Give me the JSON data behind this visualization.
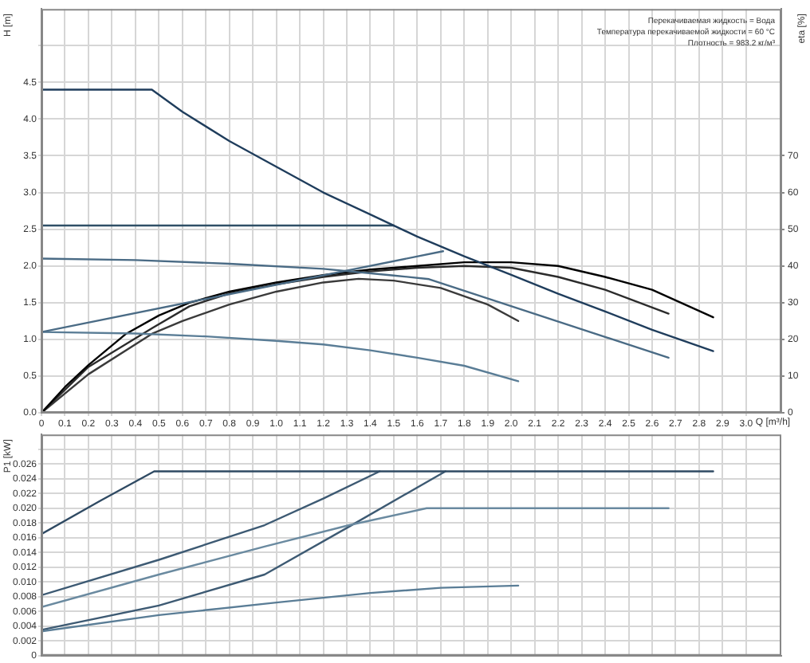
{
  "chart_data": [
    {
      "type": "line",
      "ylabel": "H [m]",
      "y2label": "eta [%]",
      "xlabel": "Q [m³/h]",
      "annotations": [
        "Перекачиваемая жидкость = Вода",
        "Температура перекачиваемой жидкости = 60 °C",
        "Плотность = 983.2 кг/м³"
      ],
      "xlim": [
        0,
        3.15
      ],
      "xticks": [
        0,
        0.1,
        0.2,
        0.3,
        0.4,
        0.5,
        0.6,
        0.7,
        0.8,
        0.9,
        {
          "value": 1,
          "label": "1.0"
        },
        1.1,
        1.2,
        1.3,
        1.4,
        1.5,
        1.6,
        1.7,
        1.8,
        1.9,
        {
          "value": 2,
          "label": "2.0"
        },
        2.1,
        2.2,
        2.3,
        2.4,
        2.5,
        2.6,
        2.7,
        2.8,
        2.9,
        {
          "value": 3,
          "label": "3.0"
        }
      ],
      "ylim": [
        0,
        5.5
      ],
      "yticks": [
        {
          "value": 0,
          "label": "0.0"
        },
        0.5,
        {
          "value": 1,
          "label": "1.0"
        },
        1.5,
        {
          "value": 2,
          "label": "2.0"
        },
        2.5,
        {
          "value": 3,
          "label": "3.0"
        },
        3.5,
        {
          "value": 4,
          "label": "4.0"
        },
        4.5,
        {
          "value": 5,
          "label": null
        }
      ],
      "y2lim": [
        0,
        110
      ],
      "y2ticks": [
        0,
        10,
        20,
        30,
        40,
        50,
        60,
        70
      ],
      "grid": true,
      "series": [
        {
          "color": "#1f3d5c",
          "x": [
            0,
            0.47,
            0.6,
            0.8,
            1.0,
            1.2,
            1.4,
            1.6,
            1.8,
            2.0,
            2.2,
            2.4,
            2.6,
            2.86
          ],
          "values": [
            4.4,
            4.4,
            4.1,
            3.7,
            3.35,
            3.0,
            2.7,
            2.4,
            2.13,
            1.88,
            1.62,
            1.38,
            1.13,
            0.84
          ]
        },
        {
          "color": "#2f4f66",
          "x": [
            0,
            1.5
          ],
          "values": [
            2.55,
            2.55
          ]
        },
        {
          "color": "#4a6b85",
          "x": [
            0,
            0.4,
            0.8,
            1.2,
            1.5,
            1.65,
            2.67
          ],
          "values": [
            2.1,
            2.08,
            2.03,
            1.96,
            1.87,
            1.82,
            0.75
          ]
        },
        {
          "color": "#4a6b85",
          "x": [
            0,
            1.71
          ],
          "values": [
            1.1,
            2.2
          ]
        },
        {
          "color": "#5a7d96",
          "x": [
            0,
            0.4,
            0.7,
            1.0,
            1.2,
            1.4,
            1.6,
            1.8,
            2.03
          ],
          "values": [
            1.1,
            1.08,
            1.04,
            0.98,
            0.93,
            0.85,
            0.75,
            0.64,
            0.43
          ]
        },
        {
          "color": "#000000",
          "axis": "y2",
          "x": [
            0,
            0.1,
            0.2,
            0.36,
            0.5,
            0.63,
            0.8,
            1.0,
            1.2,
            1.4,
            1.6,
            1.8,
            2.0,
            2.2,
            2.4,
            2.6,
            2.86
          ],
          "values": [
            0,
            7,
            13,
            21.5,
            26.5,
            30,
            33,
            35.5,
            37.5,
            39,
            40,
            41,
            41,
            40,
            37,
            33.5,
            26
          ]
        },
        {
          "color": "#2b2b2b",
          "axis": "y2",
          "x": [
            0,
            0.2,
            0.47,
            0.63,
            0.8,
            1.0,
            1.2,
            1.4,
            1.6,
            1.8,
            2.0,
            2.2,
            2.4,
            2.67
          ],
          "values": [
            0,
            12.5,
            23,
            29,
            32.5,
            35,
            37,
            38.5,
            39.5,
            40,
            39.5,
            37,
            33.5,
            27
          ]
        },
        {
          "color": "#3a3a3a",
          "axis": "y2",
          "x": [
            0,
            0.2,
            0.47,
            0.6,
            0.8,
            1.0,
            1.2,
            1.35,
            1.5,
            1.7,
            1.9,
            2.03
          ],
          "values": [
            0,
            10.5,
            21.5,
            25,
            29.5,
            33,
            35.5,
            36.5,
            36,
            34,
            29.5,
            25
          ]
        }
      ]
    },
    {
      "type": "line",
      "ylabel": "P1 [kW]",
      "tick_labels": "y",
      "xlim": [
        0,
        3.15
      ],
      "xticks": [
        0,
        0.1,
        0.2,
        0.3,
        0.4,
        0.5,
        0.6,
        0.7,
        0.8,
        0.9,
        1,
        1.1,
        1.2,
        1.3,
        1.4,
        1.5,
        1.6,
        1.7,
        1.8,
        1.9,
        2,
        2.1,
        2.2,
        2.3,
        2.4,
        2.5,
        2.6,
        2.7,
        2.8,
        2.9,
        3
      ],
      "ylim": [
        0,
        0.03
      ],
      "yticks": [
        0,
        0.002,
        0.004,
        0.006,
        0.008,
        {
          "value": 0.01,
          "label": "0.010"
        },
        0.012,
        0.014,
        0.016,
        0.018,
        {
          "value": 0.02,
          "label": "0.020"
        },
        0.022,
        0.024,
        0.026,
        {
          "value": 0.028,
          "label": null
        }
      ],
      "grid": true,
      "series": [
        {
          "color": "#2f4a63",
          "x": [
            0,
            0.25,
            0.48,
            2.86
          ],
          "values": [
            0.0165,
            0.021,
            0.025,
            0.025
          ]
        },
        {
          "color": "#3d5a73",
          "x": [
            0,
            0.5,
            0.95,
            1.2,
            1.44
          ],
          "values": [
            0.0082,
            0.013,
            0.0177,
            0.0213,
            0.025
          ]
        },
        {
          "color": "#6a8aa0",
          "x": [
            0,
            0.5,
            0.95,
            1.31,
            1.64,
            2.67
          ],
          "values": [
            0.0066,
            0.011,
            0.0148,
            0.0177,
            0.02,
            0.02
          ]
        },
        {
          "color": "#3d5a73",
          "x": [
            0,
            0.5,
            0.95,
            1.31,
            1.72
          ],
          "values": [
            0.0035,
            0.0068,
            0.011,
            0.0175,
            0.025
          ]
        },
        {
          "color": "#5a7d96",
          "x": [
            0,
            0.5,
            1.0,
            1.4,
            1.7,
            2.03
          ],
          "values": [
            0.0033,
            0.0055,
            0.0072,
            0.0085,
            0.0092,
            0.0095
          ]
        }
      ]
    }
  ]
}
